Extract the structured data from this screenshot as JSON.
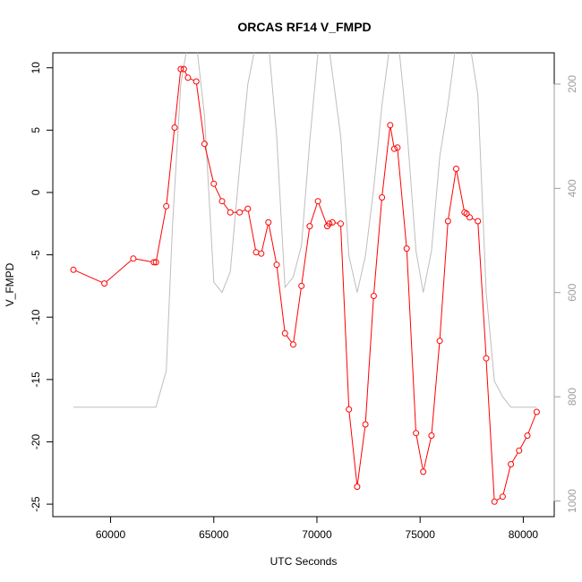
{
  "chart_data": {
    "type": "line",
    "title": "ORCAS RF14 V_FMPD",
    "xlabel": "UTC Seconds",
    "ylabel": "V_FMPD",
    "xlim": [
      57200,
      81500
    ],
    "ylim": [
      -26,
      11.2
    ],
    "y2lim": [
      1030,
      140
    ],
    "x_ticks": [
      60000,
      65000,
      70000,
      75000,
      80000
    ],
    "x_tick_labels": [
      "60000",
      "65000",
      "70000",
      "75000",
      "80000"
    ],
    "y_ticks": [
      -25,
      -20,
      -15,
      -10,
      -5,
      0,
      5,
      10
    ],
    "y_tick_labels": [
      "-25",
      "-20",
      "-15",
      "-10",
      "-5",
      "0",
      "5",
      "10"
    ],
    "y2_ticks": [
      200,
      400,
      600,
      800,
      1000
    ],
    "y2_tick_labels": [
      "200",
      "400",
      "600",
      "800",
      "1000"
    ],
    "grid": false,
    "colors": {
      "primary": "#ff0000",
      "secondary": "#bebebe",
      "axis": "#000000",
      "right_axis": "#9e9e9e"
    },
    "series": [
      {
        "axis": "left",
        "style": "line-with-open-circles",
        "x": [
          58200,
          59700,
          61100,
          62100,
          62200,
          62700,
          63100,
          63400,
          63550,
          63750,
          64150,
          64550,
          65000,
          65400,
          65800,
          66250,
          66650,
          67050,
          67300,
          67650,
          68050,
          68450,
          68850,
          69250,
          69650,
          70050,
          70500,
          70600,
          70750,
          71150,
          71550,
          71950,
          72350,
          72750,
          73150,
          73550,
          73750,
          73900,
          74350,
          74800,
          75150,
          75550,
          75950,
          76350,
          76750,
          77150,
          77250,
          77400,
          77800,
          78200,
          78600,
          79000,
          79400,
          79800,
          80200,
          80650
        ],
        "y": [
          -6.2,
          -7.3,
          -5.3,
          -5.6,
          -5.6,
          -1.1,
          5.2,
          9.9,
          9.9,
          9.2,
          8.9,
          3.9,
          0.7,
          -0.7,
          -1.6,
          -1.6,
          -1.3,
          -4.8,
          -4.9,
          -2.4,
          -5.8,
          -11.3,
          -12.2,
          -7.5,
          -2.7,
          -0.7,
          -2.7,
          -2.5,
          -2.4,
          -2.5,
          -17.4,
          -23.6,
          -18.6,
          -8.3,
          -0.4,
          5.4,
          3.5,
          3.6,
          -4.5,
          -19.3,
          -22.4,
          -19.5,
          -11.9,
          -2.3,
          1.9,
          -1.6,
          -1.7,
          -2.0,
          -2.3,
          -13.3,
          -24.8,
          -24.4,
          -21.8,
          -20.7,
          -19.5,
          -17.6
        ]
      },
      {
        "axis": "right",
        "style": "line",
        "x": [
          58200,
          62200,
          62700,
          63000,
          63400,
          63750,
          64150,
          64550,
          65000,
          65400,
          65800,
          66250,
          66650,
          67050,
          67650,
          68050,
          68450,
          68850,
          69250,
          69650,
          70050,
          70550,
          71150,
          71550,
          71950,
          72350,
          72750,
          73150,
          73550,
          73950,
          74350,
          74800,
          75150,
          75550,
          75950,
          76350,
          76750,
          77400,
          77800,
          78200,
          78600,
          79000,
          79400,
          80650
        ],
        "y": [
          820,
          820,
          750,
          470,
          200,
          120,
          120,
          260,
          580,
          600,
          560,
          360,
          200,
          120,
          120,
          300,
          590,
          570,
          510,
          310,
          140,
          120,
          300,
          530,
          600,
          530,
          400,
          240,
          120,
          120,
          280,
          520,
          600,
          520,
          340,
          240,
          120,
          120,
          220,
          600,
          770,
          800,
          820,
          820
        ]
      }
    ]
  }
}
